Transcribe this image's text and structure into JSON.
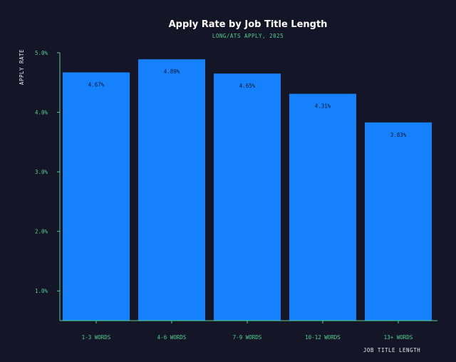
{
  "chart_data": {
    "type": "bar",
    "title": "Apply Rate by Job Title Length",
    "subtitle": "LONG/ATS APPLY, 2025",
    "xlabel": "JOB TITLE LENGTH",
    "ylabel": "APPLY RATE",
    "categories": [
      "1-3 WORDS",
      "4-6 WORDS",
      "7-9 WORDS",
      "10-12 WORDS",
      "13+ WORDS"
    ],
    "values": [
      4.67,
      4.89,
      4.65,
      4.31,
      3.83
    ],
    "data_labels": [
      "4.67%",
      "4.89%",
      "4.65%",
      "4.31%",
      "3.83%"
    ],
    "ylim": [
      0.5,
      5.0
    ],
    "yticks": [
      1.0,
      2.0,
      3.0,
      4.0,
      5.0
    ],
    "ytick_labels": [
      "1.0%",
      "2.0%",
      "3.0%",
      "4.0%",
      "5.0%"
    ],
    "grid": false,
    "colors": {
      "background": "#151528",
      "bar": "#1581fd",
      "axis": "#4fd18b",
      "title": "#ffffff",
      "data_label": "#0b1630"
    }
  }
}
